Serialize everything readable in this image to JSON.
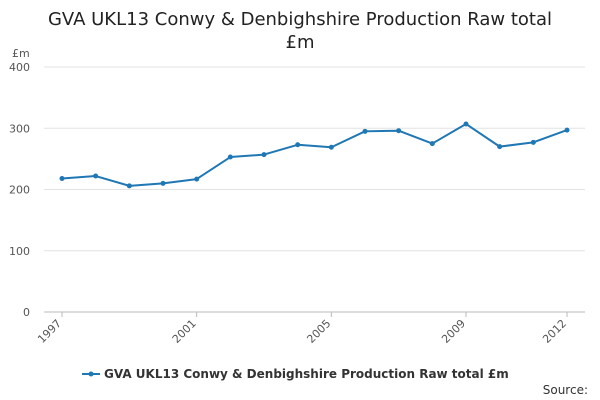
{
  "chart_data": {
    "type": "line",
    "title_line1": "GVA UKL13 Conwy & Denbighshire Production Raw total",
    "title_line2": "£m",
    "ylabel": "£m",
    "ylim": [
      0,
      400
    ],
    "yticks": [
      "0",
      "100",
      "200",
      "300",
      "400"
    ],
    "xtick_labels": [
      "1997",
      "2001",
      "2005",
      "2009",
      "2012"
    ],
    "x": [
      1997,
      1998,
      1999,
      2000,
      2001,
      2002,
      2003,
      2004,
      2005,
      2006,
      2007,
      2008,
      2009,
      2010,
      2011,
      2012
    ],
    "series": [
      {
        "name": "GVA UKL13 Conwy & Denbighshire Production Raw total £m",
        "values": [
          218,
          222,
          206,
          210,
          217,
          253,
          257,
          273,
          269,
          295,
          296,
          275,
          307,
          270,
          277,
          297
        ],
        "color": "#1f77b4"
      }
    ],
    "grid": true,
    "legend_position": "bottom",
    "source_label": "Source:"
  }
}
